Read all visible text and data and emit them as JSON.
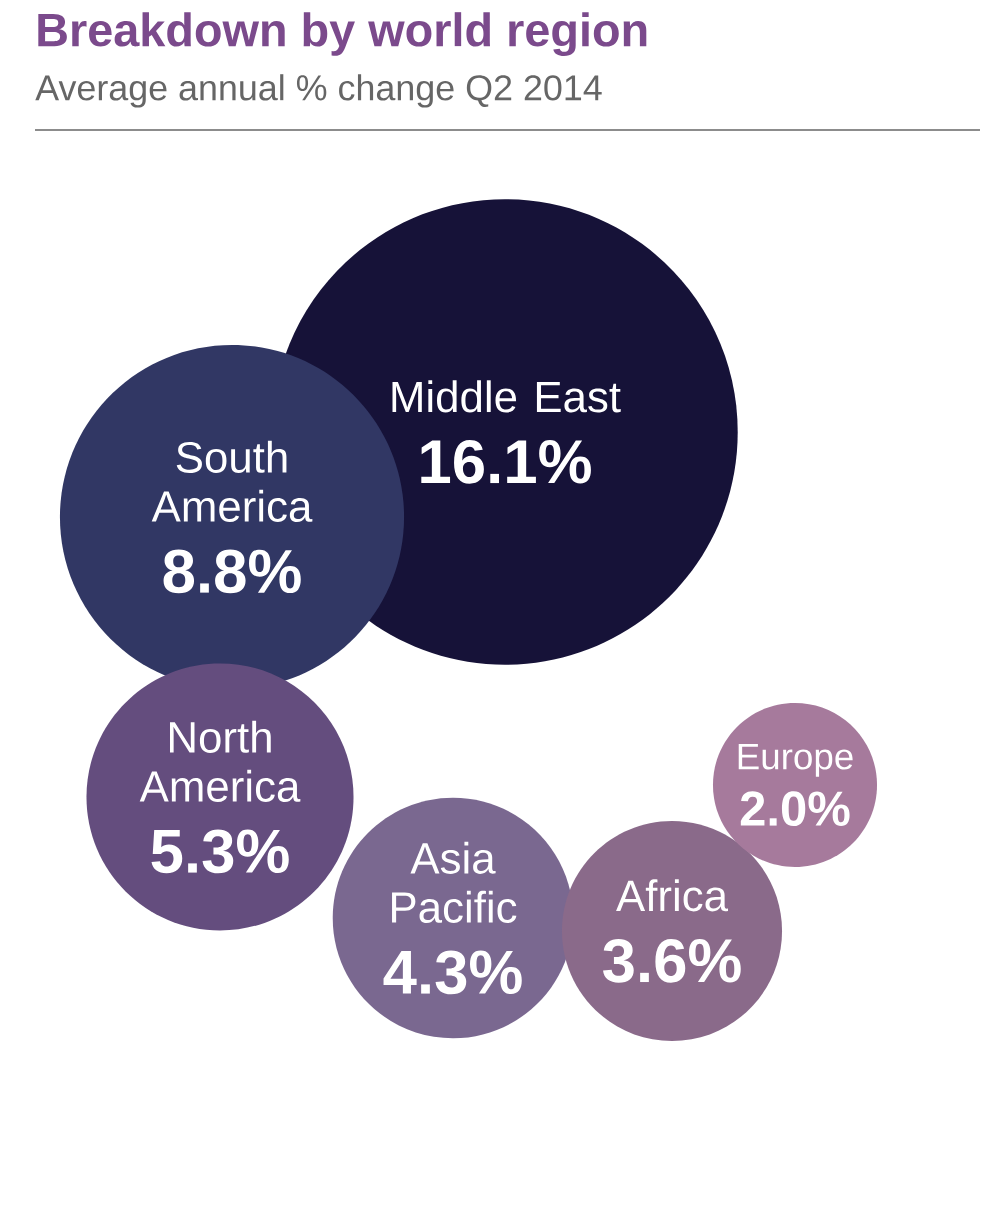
{
  "chart_data": {
    "type": "other",
    "title": "Breakdown by world region",
    "subtitle": "Average annual % change Q2 2014",
    "categories": [
      "Middle East",
      "South America",
      "North America",
      "Asia Pacific",
      "Africa",
      "Europe"
    ],
    "values": [
      16.1,
      8.8,
      5.3,
      4.3,
      3.6,
      2.0
    ],
    "value_labels": [
      "16.1%",
      "8.8%",
      "5.3%",
      "4.3%",
      "3.6%",
      "2.0%"
    ],
    "colors": [
      "#161238",
      "#313764",
      "#644d7e",
      "#7a6890",
      "#8a6a8a",
      "#a67a9c"
    ]
  }
}
